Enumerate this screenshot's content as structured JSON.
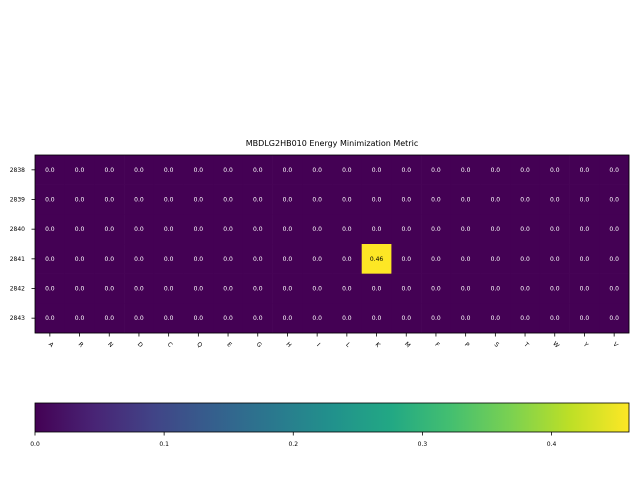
{
  "chart_data": {
    "type": "heatmap",
    "title": "MBDLG2HB010 Energy Minimization Metric",
    "xlabel": "",
    "ylabel": "",
    "x_categories": [
      "A",
      "R",
      "N",
      "D",
      "C",
      "Q",
      "E",
      "G",
      "H",
      "I",
      "L",
      "K",
      "M",
      "F",
      "P",
      "S",
      "T",
      "W",
      "Y",
      "V"
    ],
    "y_categories": [
      "2838",
      "2839",
      "2840",
      "2841",
      "2842",
      "2843"
    ],
    "values": [
      [
        0,
        0,
        0,
        0,
        0,
        0,
        0,
        0,
        0,
        0,
        0,
        0,
        0,
        0,
        0,
        0,
        0,
        0,
        0,
        0
      ],
      [
        0,
        0,
        0,
        0,
        0,
        0,
        0,
        0,
        0,
        0,
        0,
        0,
        0,
        0,
        0,
        0,
        0,
        0,
        0,
        0
      ],
      [
        0,
        0,
        0,
        0,
        0,
        0,
        0,
        0,
        0,
        0,
        0,
        0,
        0,
        0,
        0,
        0,
        0,
        0,
        0,
        0
      ],
      [
        0,
        0,
        0,
        0,
        0,
        0,
        0,
        0,
        0,
        0,
        0,
        0.46,
        0,
        0,
        0,
        0,
        0,
        0,
        0,
        0
      ],
      [
        0,
        0,
        0,
        0,
        0,
        0,
        0,
        0,
        0,
        0,
        0,
        0,
        0,
        0,
        0,
        0,
        0,
        0,
        0,
        0
      ],
      [
        0,
        0,
        0,
        0,
        0,
        0,
        0,
        0,
        0,
        0,
        0,
        0,
        0,
        0,
        0,
        0,
        0,
        0,
        0,
        0
      ]
    ],
    "cell_labels": [
      [
        "0.0",
        "0.0",
        "0.0",
        "0.0",
        "0.0",
        "0.0",
        "0.0",
        "0.0",
        "0.0",
        "0.0",
        "0.0",
        "0.0",
        "0.0",
        "0.0",
        "0.0",
        "0.0",
        "0.0",
        "0.0",
        "0.0",
        "0.0"
      ],
      [
        "0.0",
        "0.0",
        "0.0",
        "0.0",
        "0.0",
        "0.0",
        "0.0",
        "0.0",
        "0.0",
        "0.0",
        "0.0",
        "0.0",
        "0.0",
        "0.0",
        "0.0",
        "0.0",
        "0.0",
        "0.0",
        "0.0",
        "0.0"
      ],
      [
        "0.0",
        "0.0",
        "0.0",
        "0.0",
        "0.0",
        "0.0",
        "0.0",
        "0.0",
        "0.0",
        "0.0",
        "0.0",
        "0.0",
        "0.0",
        "0.0",
        "0.0",
        "0.0",
        "0.0",
        "0.0",
        "0.0",
        "0.0"
      ],
      [
        "0.0",
        "0.0",
        "0.0",
        "0.0",
        "0.0",
        "0.0",
        "0.0",
        "0.0",
        "0.0",
        "0.0",
        "0.0",
        "0.46",
        "0.0",
        "0.0",
        "0.0",
        "0.0",
        "0.0",
        "0.0",
        "0.0",
        "0.0"
      ],
      [
        "0.0",
        "0.0",
        "0.0",
        "0.0",
        "0.0",
        "0.0",
        "0.0",
        "0.0",
        "0.0",
        "0.0",
        "0.0",
        "0.0",
        "0.0",
        "0.0",
        "0.0",
        "0.0",
        "0.0",
        "0.0",
        "0.0",
        "0.0"
      ],
      [
        "0.0",
        "0.0",
        "0.0",
        "0.0",
        "0.0",
        "0.0",
        "0.0",
        "0.0",
        "0.0",
        "0.0",
        "0.0",
        "0.0",
        "0.0",
        "0.0",
        "0.0",
        "0.0",
        "0.0",
        "0.0",
        "0.0",
        "0.0"
      ]
    ],
    "colormap": "viridis",
    "vmin": 0,
    "vmax": 0.46,
    "colorbar": {
      "orientation": "horizontal",
      "placement": "bottom",
      "ticks": [
        0.0,
        0.1,
        0.2,
        0.3,
        0.4
      ],
      "tick_labels": [
        "0.0",
        "0.1",
        "0.2",
        "0.3",
        "0.4"
      ]
    },
    "grid": false
  }
}
